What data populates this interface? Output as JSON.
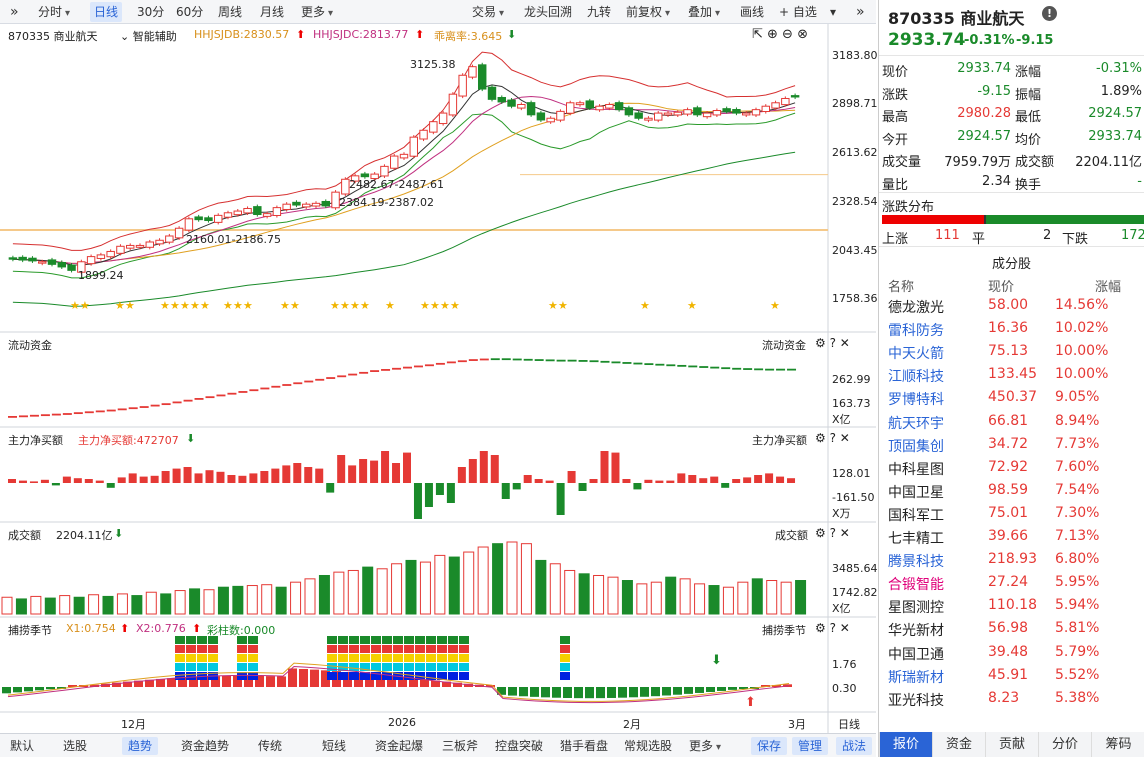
{
  "toolbar": {
    "expand_icon": "double-chevron-right",
    "periods": [
      "分时",
      "日线",
      "30分",
      "60分",
      "周线",
      "月线",
      "更多"
    ],
    "active_period": "日线",
    "right_items": [
      "交易",
      "龙头回溯",
      "九转",
      "前复权",
      "叠加",
      "画线",
      "自选"
    ],
    "add_watch": "+ 自选",
    "collapse_icon": "double-chevron-right"
  },
  "main_chart": {
    "stock_label": "870335 商业航天",
    "smart_assist": "智能辅助",
    "ind1": "HHJSJDB:2830.57",
    "ind2": "HHJSJDC:2813.77",
    "ind3": "乖离率:3.645",
    "price_ticks": [
      "3183.80",
      "2898.71",
      "2613.62",
      "2328.54",
      "2043.45",
      "1758.36"
    ],
    "annotations": [
      "3125.38",
      "2482.67-2487.61",
      "2384.19-2387.02",
      "2160.01-2186.75",
      "1899.24"
    ]
  },
  "flow": {
    "title": "流动资金",
    "right_title": "流动资金",
    "ticks": [
      "262.99",
      "163.73"
    ],
    "unit": "X亿"
  },
  "netbuy": {
    "title": "主力净买额",
    "value_label": "主力净买额:472707",
    "right_title": "主力净买额",
    "ticks": [
      "128.01",
      "-161.50"
    ],
    "unit": "X万"
  },
  "turnover": {
    "title": "成交额",
    "value_label": "2204.11亿",
    "right_title": "成交额",
    "ticks": [
      "3485.64",
      "1742.82"
    ],
    "unit": "X亿"
  },
  "season": {
    "title": "捕捞季节",
    "x1": "X1:0.754",
    "x2": "X2:0.776",
    "bars": "彩柱数:0.000",
    "right_title": "捕捞季节",
    "ticks": [
      "1.76",
      "0.30"
    ]
  },
  "xaxis": {
    "labels": [
      "12月",
      "2026",
      "2月",
      "3月"
    ],
    "rday": "日线"
  },
  "bottom_tabs": [
    "默认",
    "选股",
    "趋势",
    "资金趋势",
    "传统",
    "短线",
    "资金起爆",
    "三板斧",
    "控盘突破",
    "猎手看盘",
    "常规选股",
    "更多"
  ],
  "bottom_active": "趋势",
  "bottom_right": [
    "保存",
    "管理",
    "战法"
  ],
  "chart_data": {
    "type": "candlestick",
    "price_range": [
      1758.36,
      3183.8
    ],
    "closes": [
      1990,
      1985,
      1980,
      1975,
      1960,
      1945,
      1925,
      1975,
      2005,
      2015,
      2035,
      2065,
      2070,
      2070,
      2090,
      2100,
      2125,
      2170,
      2225,
      2220,
      2215,
      2245,
      2260,
      2270,
      2285,
      2250,
      2255,
      2290,
      2310,
      2305,
      2310,
      2315,
      2300,
      2380,
      2455,
      2475,
      2470,
      2485,
      2530,
      2590,
      2600,
      2700,
      2740,
      2790,
      2840,
      2950,
      3060,
      3110,
      2980,
      2920,
      2905,
      2880,
      2890,
      2830,
      2800,
      2810,
      2850,
      2900,
      2900,
      2870,
      2880,
      2890,
      2860,
      2830,
      2810,
      2810,
      2840,
      2840,
      2845,
      2860,
      2830,
      2840,
      2855,
      2850,
      2840,
      2840,
      2860,
      2880,
      2900,
      2925,
      2933.74
    ],
    "up": [
      0,
      0,
      0,
      1,
      0,
      0,
      0,
      1,
      1,
      1,
      1,
      1,
      1,
      1,
      1,
      1,
      1,
      1,
      1,
      0,
      0,
      1,
      1,
      1,
      1,
      0,
      1,
      1,
      1,
      0,
      1,
      1,
      0,
      1,
      1,
      1,
      0,
      1,
      1,
      1,
      1,
      1,
      1,
      1,
      1,
      1,
      1,
      1,
      0,
      0,
      0,
      0,
      1,
      0,
      0,
      1,
      1,
      1,
      1,
      0,
      1,
      1,
      0,
      0,
      0,
      1,
      1,
      1,
      1,
      1,
      0,
      1,
      1,
      0,
      0,
      1,
      1,
      1,
      1,
      1,
      0
    ],
    "flow": [
      100,
      102,
      104,
      106,
      108,
      110,
      113,
      116,
      119,
      122,
      126,
      130,
      134,
      139,
      144,
      150,
      156,
      162,
      168,
      174,
      180,
      186,
      192,
      198,
      204,
      210,
      216,
      222,
      228,
      234,
      240,
      246,
      252,
      258,
      262,
      266,
      270,
      274,
      278,
      283,
      288,
      292,
      296,
      298,
      299,
      299,
      298,
      297,
      296,
      295,
      294,
      294,
      293,
      292,
      290,
      288,
      286,
      284,
      282,
      280,
      278,
      276,
      274,
      272,
      270,
      268,
      266,
      265,
      264,
      263,
      263,
      263
    ],
    "netbuy": [
      5,
      3,
      2,
      4,
      -3,
      8,
      6,
      5,
      3,
      -6,
      7,
      12,
      8,
      9,
      15,
      18,
      20,
      12,
      16,
      14,
      10,
      9,
      12,
      15,
      18,
      22,
      25,
      20,
      18,
      -12,
      35,
      22,
      30,
      28,
      40,
      25,
      38,
      -45,
      -30,
      -15,
      -25,
      20,
      30,
      40,
      35,
      -20,
      -8,
      10,
      5,
      3,
      -40,
      15,
      -10,
      5,
      40,
      38,
      5,
      -8,
      4,
      3,
      3,
      12,
      10,
      6,
      8,
      -6,
      5,
      7,
      10,
      12,
      8,
      6
    ],
    "turnover": [
      1000,
      900,
      1050,
      950,
      1100,
      1000,
      1150,
      1050,
      1200,
      1100,
      1300,
      1200,
      1400,
      1500,
      1450,
      1600,
      1650,
      1700,
      1750,
      1600,
      1900,
      2100,
      2300,
      2500,
      2600,
      2800,
      2700,
      3000,
      3200,
      3100,
      3500,
      3400,
      3700,
      4000,
      4200,
      4300,
      4200,
      3200,
      3000,
      2600,
      2400,
      2300,
      2200,
      2000,
      1800,
      1900,
      2200,
      2100,
      1800,
      1700,
      1600,
      1900,
      2100,
      2000,
      1900,
      2000
    ],
    "turnover_unit": "亿",
    "netbuy_unit": "万",
    "flow_unit": "亿"
  },
  "quote": {
    "title": "870335 商业航天",
    "price": "2933.74",
    "change_pct": "-0.31%",
    "change": "-9.15",
    "rows": [
      [
        "现价",
        "2933.74",
        "涨幅",
        "-0.31%"
      ],
      [
        "涨跌",
        "-9.15",
        "振幅",
        "1.89%"
      ],
      [
        "最高",
        "2980.28",
        "最低",
        "2924.57"
      ],
      [
        "今开",
        "2924.57",
        "均价",
        "2933.74"
      ],
      [
        "成交量",
        "7959.79万",
        "成交额",
        "2204.11亿"
      ],
      [
        "量比",
        "2.34",
        "换手",
        "-"
      ]
    ],
    "dist_title": "涨跌分布",
    "up_label": "上涨",
    "up": "111",
    "flat_label": "平",
    "flat": "2",
    "down_label": "下跌",
    "down": "172",
    "comp_title": "成分股",
    "comp_headers": [
      "名称",
      "现价",
      "涨幅"
    ],
    "stocks": [
      [
        "德龙激光",
        "58.00",
        "14.56%"
      ],
      [
        "雷科防务",
        "16.36",
        "10.02%"
      ],
      [
        "中天火箭",
        "75.13",
        "10.00%"
      ],
      [
        "江顺科技",
        "133.45",
        "10.00%"
      ],
      [
        "罗博特科",
        "450.37",
        "9.05%"
      ],
      [
        "航天环宇",
        "66.81",
        "8.94%"
      ],
      [
        "顶固集创",
        "34.72",
        "7.73%"
      ],
      [
        "中科星图",
        "72.92",
        "7.60%"
      ],
      [
        "中国卫星",
        "98.59",
        "7.54%"
      ],
      [
        "国科军工",
        "75.01",
        "7.30%"
      ],
      [
        "七丰精工",
        "39.66",
        "7.13%"
      ],
      [
        "腾景科技",
        "218.93",
        "6.80%"
      ],
      [
        "合锻智能",
        "27.24",
        "5.95%"
      ],
      [
        "星图测控",
        "110.18",
        "5.94%"
      ],
      [
        "华光新材",
        "56.98",
        "5.81%"
      ],
      [
        "中国卫通",
        "39.48",
        "5.79%"
      ],
      [
        "斯瑞新材",
        "45.91",
        "5.52%"
      ],
      [
        "亚光科技",
        "8.23",
        "5.38%"
      ]
    ],
    "tabs": [
      "报价",
      "资金",
      "贡献",
      "分价",
      "筹码"
    ],
    "active_tab": "报价"
  },
  "colors": {
    "up": "#e53935",
    "down": "#1a8a2a",
    "accent": "#2a64d6"
  }
}
